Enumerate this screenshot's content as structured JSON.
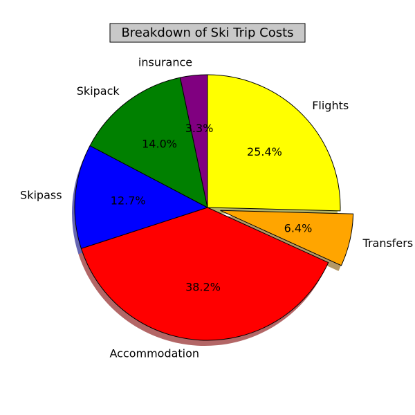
{
  "chart_data": {
    "type": "pie",
    "title": "Breakdown of Ski Trip Costs",
    "start_angle_deg": 90,
    "direction": "clockwise",
    "autopct_format": "%.1f%%",
    "shadow": true,
    "slices": [
      {
        "label": "Flights",
        "value": 25.4,
        "color": "#ffff00",
        "explode": false
      },
      {
        "label": "Transfers",
        "value": 6.4,
        "color": "#ffa500",
        "explode": true
      },
      {
        "label": "Accommodation",
        "value": 38.2,
        "color": "#ff0000",
        "explode": false
      },
      {
        "label": "Skipass",
        "value": 12.7,
        "color": "#0000ff",
        "explode": false
      },
      {
        "label": "Skipack",
        "value": 14.0,
        "color": "#008000",
        "explode": false
      },
      {
        "label": "insurance",
        "value": 3.3,
        "color": "#800080",
        "explode": false
      }
    ]
  }
}
